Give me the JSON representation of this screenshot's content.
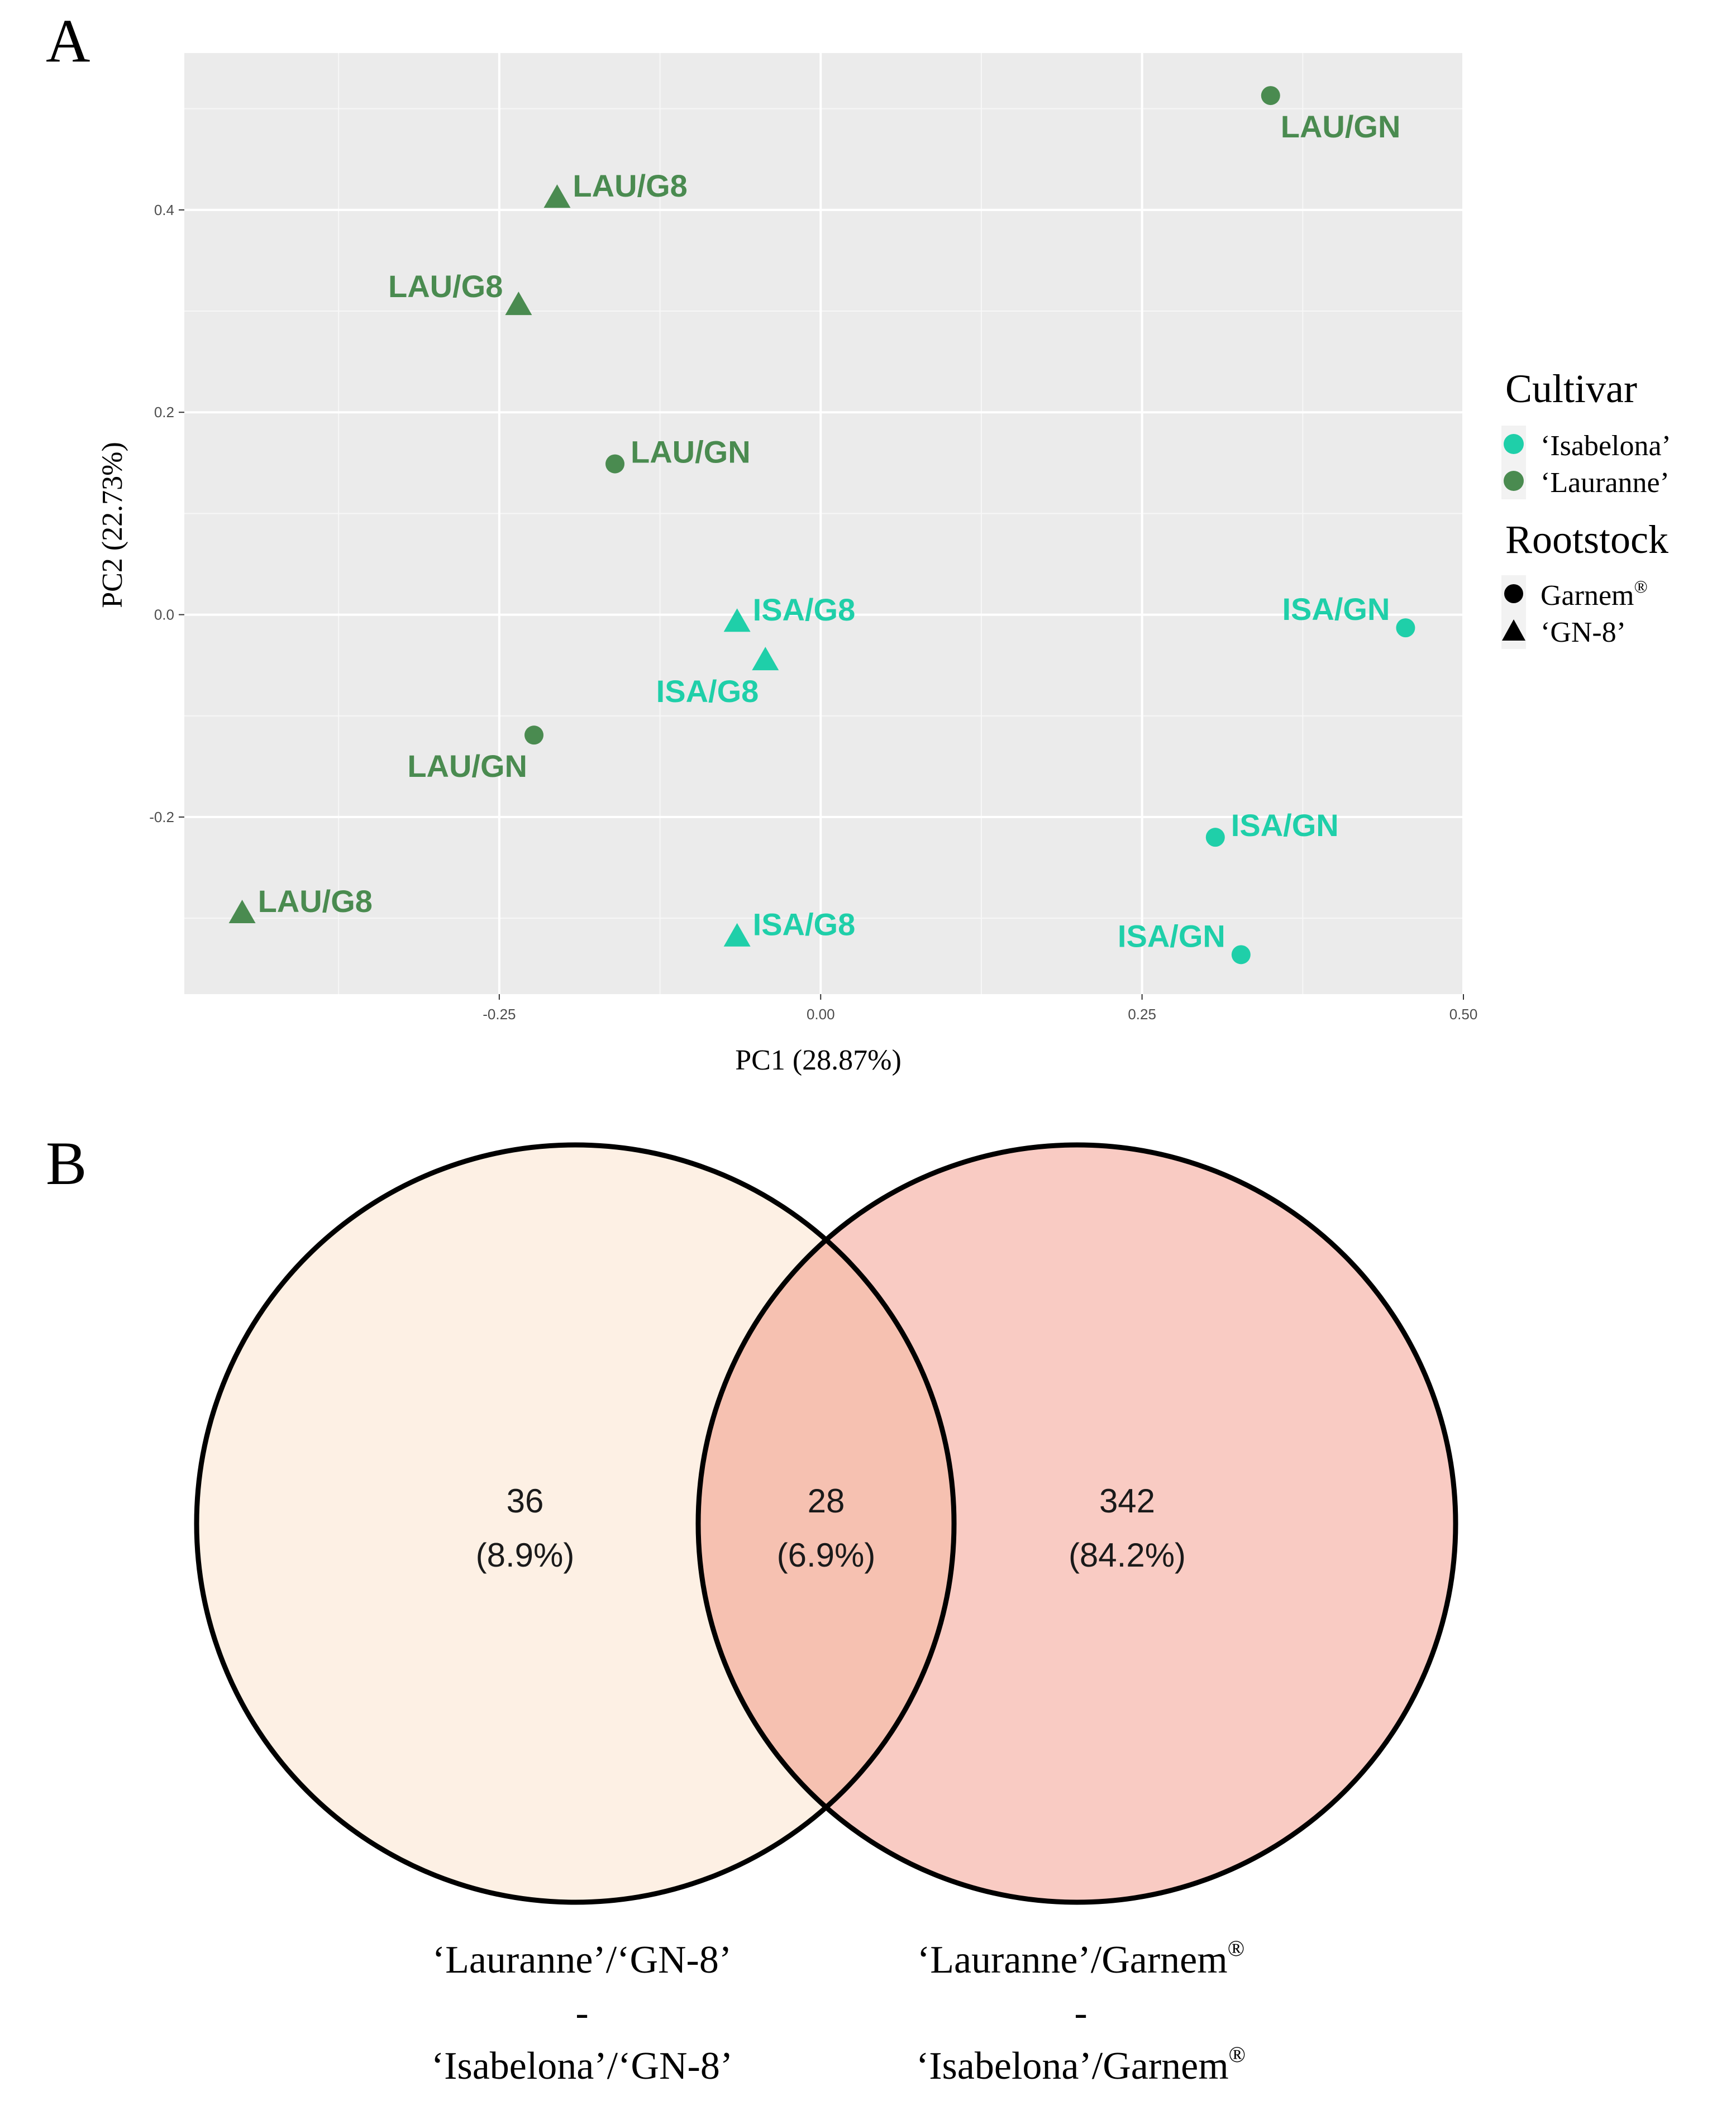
{
  "panels": {
    "a_letter": "A",
    "b_letter": "B"
  },
  "chart_data": [
    {
      "type": "scatter",
      "title": "",
      "xlabel": "PC1 (28.87%)",
      "ylabel": "PC2 (22.73%)",
      "xlim": [
        -0.495,
        0.5
      ],
      "ylim": [
        -0.375,
        0.555
      ],
      "xticks": [
        -0.25,
        0.0,
        0.25,
        0.5
      ],
      "xtick_labels": [
        "-0.25",
        "0.00",
        "0.25",
        "0.50"
      ],
      "yticks": [
        -0.2,
        0.0,
        0.2,
        0.4
      ],
      "ytick_labels": [
        "-0.2",
        "0.0",
        "0.2",
        "0.4"
      ],
      "grid": true,
      "background": "#ebebeb",
      "colors": {
        "isabelona": "#1fcfa9",
        "lauranne": "#4a8b50"
      },
      "points": [
        {
          "x": 0.35,
          "y": 0.513,
          "cultivar": "lauranne",
          "rootstock": "garnem",
          "label": "LAU/GN",
          "label_pos": "below-right"
        },
        {
          "x": -0.205,
          "y": 0.412,
          "cultivar": "lauranne",
          "rootstock": "gn8",
          "label": "LAU/G8",
          "label_pos": "right"
        },
        {
          "x": -0.235,
          "y": 0.306,
          "cultivar": "lauranne",
          "rootstock": "gn8",
          "label": "LAU/G8",
          "label_pos": "left"
        },
        {
          "x": -0.16,
          "y": 0.149,
          "cultivar": "lauranne",
          "rootstock": "garnem",
          "label": "LAU/GN",
          "label_pos": "right"
        },
        {
          "x": -0.065,
          "y": -0.007,
          "cultivar": "isabelona",
          "rootstock": "gn8",
          "label": "ISA/G8",
          "label_pos": "right"
        },
        {
          "x": -0.043,
          "y": -0.045,
          "cultivar": "isabelona",
          "rootstock": "gn8",
          "label": "ISA/G8",
          "label_pos": "below-left"
        },
        {
          "x": 0.455,
          "y": -0.013,
          "cultivar": "isabelona",
          "rootstock": "garnem",
          "label": "ISA/GN",
          "label_pos": "left"
        },
        {
          "x": -0.223,
          "y": -0.119,
          "cultivar": "lauranne",
          "rootstock": "garnem",
          "label": "LAU/GN",
          "label_pos": "below-left"
        },
        {
          "x": 0.307,
          "y": -0.22,
          "cultivar": "isabelona",
          "rootstock": "garnem",
          "label": "ISA/GN",
          "label_pos": "right"
        },
        {
          "x": -0.45,
          "y": -0.295,
          "cultivar": "lauranne",
          "rootstock": "gn8",
          "label": "LAU/G8",
          "label_pos": "right"
        },
        {
          "x": -0.065,
          "y": -0.318,
          "cultivar": "isabelona",
          "rootstock": "gn8",
          "label": "ISA/G8",
          "label_pos": "right"
        },
        {
          "x": 0.327,
          "y": -0.336,
          "cultivar": "isabelona",
          "rootstock": "garnem",
          "label": "ISA/GN",
          "label_pos": "left"
        }
      ],
      "legend": {
        "placement": "right",
        "cultivar_title": "Cultivar",
        "cultivar_items": [
          {
            "key": "isabelona",
            "label": "‘Isabelona’"
          },
          {
            "key": "lauranne",
            "label": "‘Lauranne’"
          }
        ],
        "rootstock_title": "Rootstock",
        "rootstock_items": [
          {
            "key": "garnem",
            "label": "Garnem",
            "sup": "®"
          },
          {
            "key": "gn8",
            "label": "‘GN-8’",
            "sup": ""
          }
        ]
      }
    },
    {
      "type": "venn",
      "left_only": {
        "count": "36",
        "percent": "(8.9%)"
      },
      "intersection": {
        "count": "28",
        "percent": "(6.9%)"
      },
      "right_only": {
        "count": "342",
        "percent": "(84.2%)"
      },
      "left_set": {
        "color": "#fdf0e4",
        "line1": "‘Lauranne’/‘GN-8’",
        "dash": "-",
        "line2": "‘Isabelona’/‘GN-8’",
        "sup": ""
      },
      "right_set": {
        "color": "#f9cbc3",
        "line1": "‘Lauranne’/Garnem",
        "dash": "-",
        "line2": "‘Isabelona’/Garnem",
        "sup": "®"
      },
      "intersection_color": "#f6c1b1"
    }
  ]
}
